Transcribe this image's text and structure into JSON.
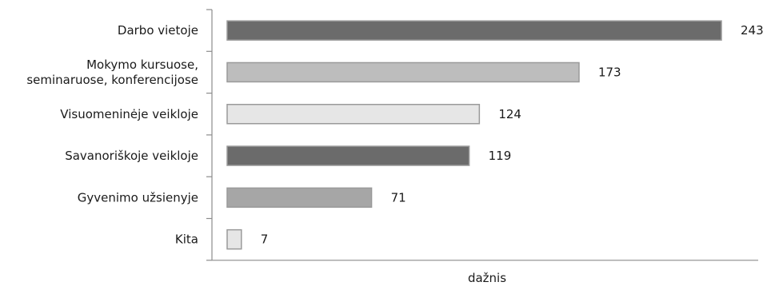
{
  "chart_data": {
    "type": "bar",
    "orientation": "horizontal",
    "categories": [
      [
        "Darbo vietoje"
      ],
      [
        "Mokymo kursuose,",
        "seminaruose, konferencijose"
      ],
      [
        "Visuomeninėje veikloje"
      ],
      [
        "Savanoriškoje veikloje"
      ],
      [
        "Gyvenimo užsienyje"
      ],
      [
        "Kita"
      ]
    ],
    "values": [
      243,
      173,
      124,
      119,
      71,
      7
    ],
    "bar_colors": [
      "#6b6b6b",
      "#bdbdbd",
      "#e6e6e6",
      "#6b6b6b",
      "#a6a6a6",
      "#e6e6e6"
    ],
    "value_labels": [
      "243",
      "173",
      "124",
      "119",
      "71",
      "7"
    ],
    "xlabel": "dažnis",
    "ylabel": "",
    "xlim": [
      0,
      243
    ],
    "grid": false,
    "legend": "none"
  }
}
